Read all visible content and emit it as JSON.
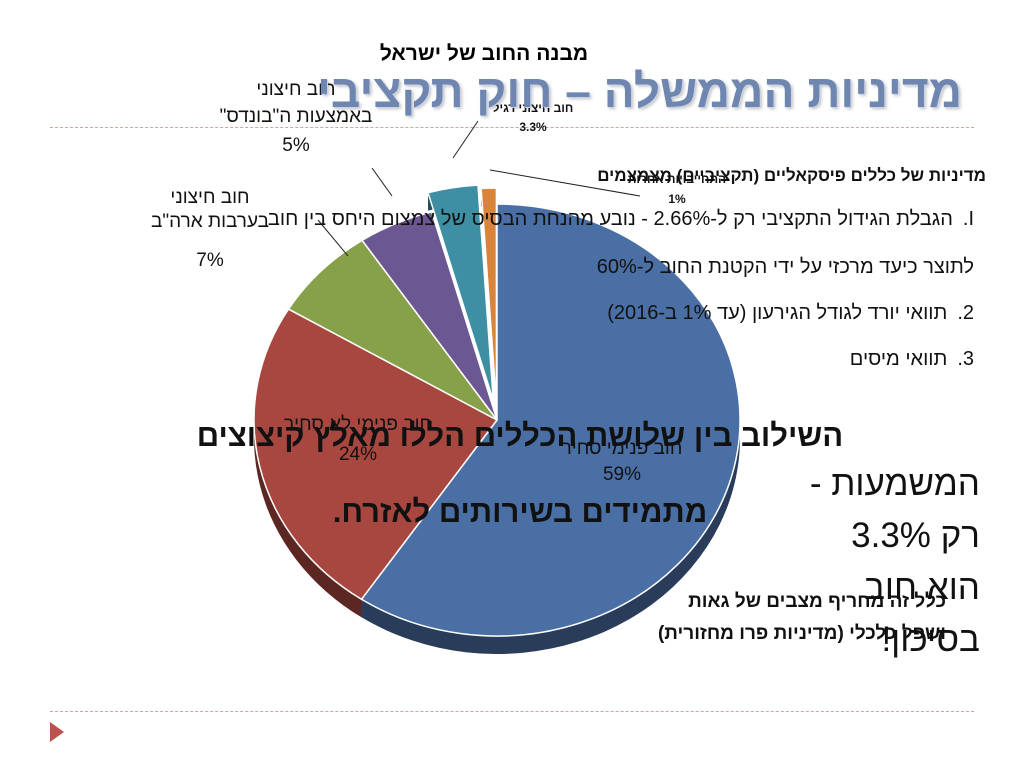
{
  "slide": {
    "title": "מדיניות הממשלה – חוק תקציבי",
    "intro": "מדיניות של כללים פיסקאליים (תקציביים) מצמצמים",
    "list": [
      {
        "num": "I.",
        "text": "הגבלת הגידול התקציבי רק ל-2.66% - נובע מהנחת הבסיס של צמצום היחס בין חוב"
      },
      {
        "num": "",
        "text": "לתוצר כיעד מרכזי על ידי הקטנת החוב ל-60%"
      },
      {
        "num": "2.",
        "text": "תוואי יורד לגודל הגירעון (עד 1% ב-2016)"
      },
      {
        "num": "3.",
        "text": "תוואי מיסים"
      }
    ],
    "combined_statement_1": "השילוב בין שלושת הכללים הללו מאלץ קיצוצים",
    "combined_statement_2": "מתמידים בשירותים לאזרח.",
    "meaning": [
      "המשמעות -",
      "רק 3.3%",
      "הוא חוב",
      "בסיכון!"
    ],
    "rule_note_1": "כלל זה מחריף מצבים של גאות",
    "rule_note_2": "ושפל כלכלי (מדיניות פרו מחזורית)"
  },
  "chart_data": {
    "type": "pie",
    "title": "מבנה החוב של ישראל",
    "slices": [
      {
        "name": "חוב פנימי סחיר",
        "value": 59,
        "label": "59%",
        "color": "#4a6fa5"
      },
      {
        "name": "חוב פנימי לא סחיר",
        "value": 24,
        "label": "24%",
        "color": "#a8473f"
      },
      {
        "name": "חוב חיצוני בערבות ארה\"ב",
        "value": 7,
        "label": "7%",
        "color": "#87a04a"
      },
      {
        "name": "חוב חיצוני באמצעות ה\"בונדס\"",
        "value": 5,
        "label": "5%",
        "color": "#6b5792"
      },
      {
        "name": "חוב חיצוני רגיל",
        "value": 3.3,
        "label": "3.3%",
        "color": "#3e8fa4"
      },
      {
        "name": "התחייבויות אחרות",
        "value": 1,
        "label": "1%",
        "color": "#d9843b"
      }
    ]
  }
}
